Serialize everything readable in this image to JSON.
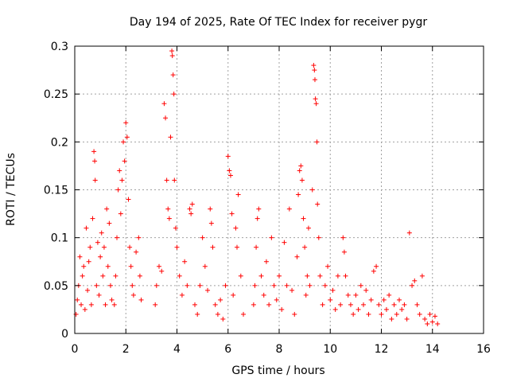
{
  "chart_data": {
    "type": "scatter",
    "title": "Day 194 of 2025, Rate Of TEC Index for receiver pygr",
    "xlabel": "GPS time / hours",
    "ylabel": "ROTI / TECUs",
    "xlim": [
      0,
      16
    ],
    "ylim": [
      0,
      0.3
    ],
    "xticks": [
      "0",
      "2",
      "4",
      "6",
      "8",
      "10",
      "12",
      "14",
      "16"
    ],
    "yticks": [
      "0",
      "0.05",
      "0.1",
      "0.15",
      "0.2",
      "0.25",
      "0.3"
    ],
    "grid": true,
    "marker": "+",
    "color": "#ff0000",
    "series": [
      {
        "name": "ROTI",
        "points": [
          [
            0.05,
            0.02
          ],
          [
            0.1,
            0.035
          ],
          [
            0.15,
            0.05
          ],
          [
            0.2,
            0.08
          ],
          [
            0.25,
            0.03
          ],
          [
            0.3,
            0.06
          ],
          [
            0.35,
            0.07
          ],
          [
            0.4,
            0.025
          ],
          [
            0.45,
            0.11
          ],
          [
            0.5,
            0.045
          ],
          [
            0.55,
            0.075
          ],
          [
            0.6,
            0.09
          ],
          [
            0.65,
            0.03
          ],
          [
            0.7,
            0.12
          ],
          [
            0.75,
            0.19
          ],
          [
            0.78,
            0.18
          ],
          [
            0.8,
            0.16
          ],
          [
            0.85,
            0.05
          ],
          [
            0.9,
            0.095
          ],
          [
            0.95,
            0.04
          ],
          [
            1.0,
            0.08
          ],
          [
            1.05,
            0.105
          ],
          [
            1.1,
            0.06
          ],
          [
            1.15,
            0.09
          ],
          [
            1.2,
            0.03
          ],
          [
            1.25,
            0.13
          ],
          [
            1.3,
            0.07
          ],
          [
            1.35,
            0.115
          ],
          [
            1.4,
            0.05
          ],
          [
            1.45,
            0.035
          ],
          [
            1.55,
            0.03
          ],
          [
            1.6,
            0.06
          ],
          [
            1.65,
            0.1
          ],
          [
            1.7,
            0.15
          ],
          [
            1.75,
            0.17
          ],
          [
            1.8,
            0.125
          ],
          [
            1.85,
            0.16
          ],
          [
            1.9,
            0.2
          ],
          [
            1.95,
            0.18
          ],
          [
            2.0,
            0.22
          ],
          [
            2.05,
            0.205
          ],
          [
            2.1,
            0.14
          ],
          [
            2.15,
            0.09
          ],
          [
            2.2,
            0.07
          ],
          [
            2.25,
            0.05
          ],
          [
            2.3,
            0.04
          ],
          [
            2.4,
            0.085
          ],
          [
            2.5,
            0.1
          ],
          [
            2.55,
            0.06
          ],
          [
            2.6,
            0.035
          ],
          [
            3.15,
            0.03
          ],
          [
            3.2,
            0.05
          ],
          [
            3.3,
            0.07
          ],
          [
            3.4,
            0.065
          ],
          [
            3.5,
            0.24
          ],
          [
            3.55,
            0.225
          ],
          [
            3.6,
            0.16
          ],
          [
            3.65,
            0.13
          ],
          [
            3.7,
            0.12
          ],
          [
            3.75,
            0.205
          ],
          [
            3.8,
            0.295
          ],
          [
            3.82,
            0.29
          ],
          [
            3.85,
            0.27
          ],
          [
            3.88,
            0.25
          ],
          [
            3.9,
            0.16
          ],
          [
            3.95,
            0.11
          ],
          [
            4.0,
            0.09
          ],
          [
            4.1,
            0.06
          ],
          [
            4.2,
            0.04
          ],
          [
            4.3,
            0.075
          ],
          [
            4.4,
            0.05
          ],
          [
            4.5,
            0.13
          ],
          [
            4.55,
            0.125
          ],
          [
            4.6,
            0.135
          ],
          [
            4.7,
            0.03
          ],
          [
            4.8,
            0.02
          ],
          [
            4.9,
            0.05
          ],
          [
            5.0,
            0.1
          ],
          [
            5.1,
            0.07
          ],
          [
            5.2,
            0.045
          ],
          [
            5.3,
            0.13
          ],
          [
            5.35,
            0.115
          ],
          [
            5.4,
            0.09
          ],
          [
            5.5,
            0.03
          ],
          [
            5.6,
            0.02
          ],
          [
            5.7,
            0.035
          ],
          [
            5.8,
            0.015
          ],
          [
            5.9,
            0.05
          ],
          [
            6.0,
            0.185
          ],
          [
            6.05,
            0.17
          ],
          [
            6.1,
            0.165
          ],
          [
            6.15,
            0.125
          ],
          [
            6.2,
            0.04
          ],
          [
            6.3,
            0.11
          ],
          [
            6.35,
            0.09
          ],
          [
            6.4,
            0.145
          ],
          [
            6.5,
            0.06
          ],
          [
            6.6,
            0.02
          ],
          [
            7.0,
            0.03
          ],
          [
            7.05,
            0.05
          ],
          [
            7.1,
            0.09
          ],
          [
            7.15,
            0.12
          ],
          [
            7.2,
            0.13
          ],
          [
            7.3,
            0.06
          ],
          [
            7.4,
            0.04
          ],
          [
            7.5,
            0.075
          ],
          [
            7.6,
            0.03
          ],
          [
            7.7,
            0.1
          ],
          [
            7.8,
            0.05
          ],
          [
            7.9,
            0.035
          ],
          [
            8.0,
            0.06
          ],
          [
            8.1,
            0.025
          ],
          [
            8.2,
            0.095
          ],
          [
            8.3,
            0.05
          ],
          [
            8.4,
            0.13
          ],
          [
            8.5,
            0.045
          ],
          [
            8.6,
            0.02
          ],
          [
            8.7,
            0.08
          ],
          [
            8.75,
            0.145
          ],
          [
            8.8,
            0.17
          ],
          [
            8.85,
            0.175
          ],
          [
            8.9,
            0.16
          ],
          [
            8.95,
            0.12
          ],
          [
            9.0,
            0.09
          ],
          [
            9.05,
            0.04
          ],
          [
            9.1,
            0.06
          ],
          [
            9.15,
            0.11
          ],
          [
            9.2,
            0.05
          ],
          [
            9.3,
            0.15
          ],
          [
            9.35,
            0.28
          ],
          [
            9.38,
            0.275
          ],
          [
            9.4,
            0.265
          ],
          [
            9.42,
            0.245
          ],
          [
            9.45,
            0.24
          ],
          [
            9.48,
            0.2
          ],
          [
            9.5,
            0.135
          ],
          [
            9.55,
            0.1
          ],
          [
            9.6,
            0.06
          ],
          [
            9.7,
            0.03
          ],
          [
            9.8,
            0.05
          ],
          [
            9.9,
            0.07
          ],
          [
            10.0,
            0.035
          ],
          [
            10.1,
            0.045
          ],
          [
            10.2,
            0.025
          ],
          [
            10.3,
            0.06
          ],
          [
            10.4,
            0.03
          ],
          [
            10.5,
            0.1
          ],
          [
            10.55,
            0.085
          ],
          [
            10.6,
            0.06
          ],
          [
            10.7,
            0.04
          ],
          [
            10.8,
            0.03
          ],
          [
            10.9,
            0.02
          ],
          [
            11.0,
            0.04
          ],
          [
            11.1,
            0.025
          ],
          [
            11.2,
            0.05
          ],
          [
            11.3,
            0.03
          ],
          [
            11.4,
            0.045
          ],
          [
            11.5,
            0.02
          ],
          [
            11.6,
            0.035
          ],
          [
            11.7,
            0.065
          ],
          [
            11.8,
            0.07
          ],
          [
            11.9,
            0.03
          ],
          [
            12.0,
            0.02
          ],
          [
            12.1,
            0.035
          ],
          [
            12.2,
            0.025
          ],
          [
            12.3,
            0.04
          ],
          [
            12.4,
            0.015
          ],
          [
            12.5,
            0.03
          ],
          [
            12.6,
            0.02
          ],
          [
            12.7,
            0.035
          ],
          [
            12.8,
            0.025
          ],
          [
            12.9,
            0.03
          ],
          [
            13.0,
            0.015
          ],
          [
            13.1,
            0.105
          ],
          [
            13.2,
            0.05
          ],
          [
            13.3,
            0.055
          ],
          [
            13.4,
            0.03
          ],
          [
            13.5,
            0.02
          ],
          [
            13.6,
            0.06
          ],
          [
            13.7,
            0.015
          ],
          [
            13.8,
            0.01
          ],
          [
            13.9,
            0.02
          ],
          [
            14.0,
            0.012
          ],
          [
            14.1,
            0.018
          ],
          [
            14.2,
            0.01
          ]
        ]
      }
    ]
  }
}
